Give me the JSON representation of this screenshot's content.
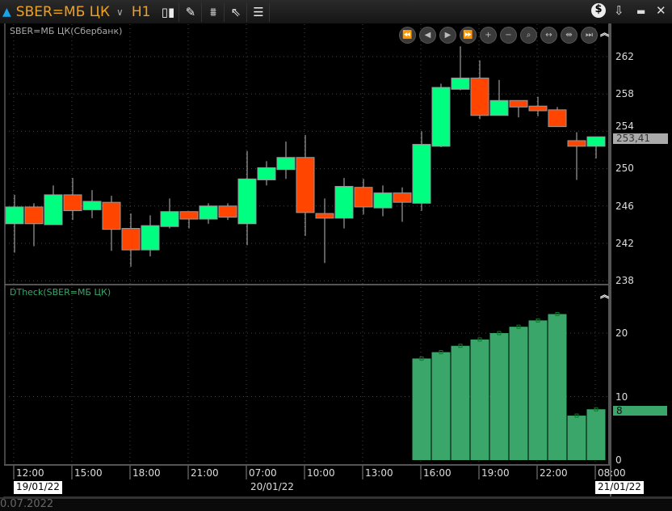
{
  "header": {
    "symbol": "SBER=МБ ЦК",
    "timeframe": "H1",
    "icons": [
      "up-triangle-icon",
      "chevron-down-icon",
      "candles-icon",
      "pencil-icon",
      "indicator-icon",
      "cursor-icon",
      "dom-icon",
      "dollar-icon",
      "download-icon",
      "minimize-icon",
      "close-icon"
    ]
  },
  "price_pane": {
    "title": "SBER=МБ ЦК(Сбербанк)",
    "last": "253,41",
    "axis": [
      "262",
      "258",
      "254",
      "250",
      "246",
      "242",
      "238"
    ],
    "colors": {
      "up": "#00ff80",
      "down": "#ff4500"
    }
  },
  "nav_buttons": [
    "⏪",
    "◀",
    "▶",
    "⏩",
    "+",
    "−",
    "⌕",
    "↔",
    "⇹",
    "⏭"
  ],
  "indicator_pane": {
    "title": "DTheck(SBER=МБ ЦК)",
    "last": "8",
    "axis": [
      "20",
      "10",
      "0"
    ],
    "color": "#3aa66a"
  },
  "time_axis": {
    "labels": [
      "12:00",
      "15:00",
      "18:00",
      "21:00",
      "07:00",
      "10:00",
      "13:00",
      "16:00",
      "19:00",
      "22:00",
      "08:00"
    ],
    "dates": [
      "19/01/22",
      "20/01/22",
      "21/01/22"
    ]
  },
  "footer": {
    "date": "0.07.2022"
  },
  "chart_data": [
    {
      "type": "candlestick",
      "ylim": [
        238,
        264
      ],
      "ohlc": [
        [
          244.1,
          247.2,
          241.0,
          245.9
        ],
        [
          245.9,
          246.3,
          241.7,
          244.1
        ],
        [
          244.0,
          248.2,
          244.0,
          247.2
        ],
        [
          247.2,
          249.0,
          244.5,
          245.5
        ],
        [
          245.6,
          247.7,
          244.7,
          246.5
        ],
        [
          246.4,
          247.1,
          241.2,
          243.5
        ],
        [
          243.6,
          245.2,
          239.5,
          241.3
        ],
        [
          241.3,
          245.0,
          240.6,
          243.9
        ],
        [
          243.8,
          246.8,
          243.6,
          245.4
        ],
        [
          245.4,
          245.4,
          243.6,
          244.6
        ],
        [
          244.6,
          246.3,
          244.1,
          246.0
        ],
        [
          246.0,
          246.3,
          244.5,
          244.8
        ],
        [
          244.1,
          251.9,
          241.8,
          248.9
        ],
        [
          248.8,
          250.8,
          248.2,
          250.1
        ],
        [
          249.9,
          252.9,
          248.9,
          251.2
        ],
        [
          251.2,
          253.6,
          242.8,
          245.3
        ],
        [
          245.2,
          246.8,
          239.9,
          244.7
        ],
        [
          244.7,
          249.0,
          243.6,
          248.1
        ],
        [
          248.0,
          248.9,
          245.1,
          245.9
        ],
        [
          245.8,
          248.2,
          244.9,
          247.4
        ],
        [
          247.4,
          248.0,
          244.3,
          246.4
        ],
        [
          246.3,
          254.0,
          245.5,
          252.6
        ],
        [
          252.4,
          259.1,
          252.3,
          258.7
        ],
        [
          258.5,
          263.1,
          258.4,
          259.7
        ],
        [
          259.7,
          261.6,
          255.3,
          255.7
        ],
        [
          255.7,
          259.5,
          255.7,
          257.3
        ],
        [
          257.3,
          257.3,
          255.5,
          256.6
        ],
        [
          256.7,
          257.7,
          255.6,
          256.2
        ],
        [
          256.3,
          256.6,
          254.5,
          254.5
        ],
        [
          253.0,
          253.9,
          248.8,
          252.4
        ],
        [
          252.4,
          253.4,
          251.1,
          253.41
        ]
      ]
    },
    {
      "type": "bar",
      "ylim": [
        0,
        25
      ],
      "start_index": 21,
      "values": [
        16,
        17,
        18,
        19,
        20,
        21,
        22,
        23,
        7,
        8
      ]
    }
  ]
}
